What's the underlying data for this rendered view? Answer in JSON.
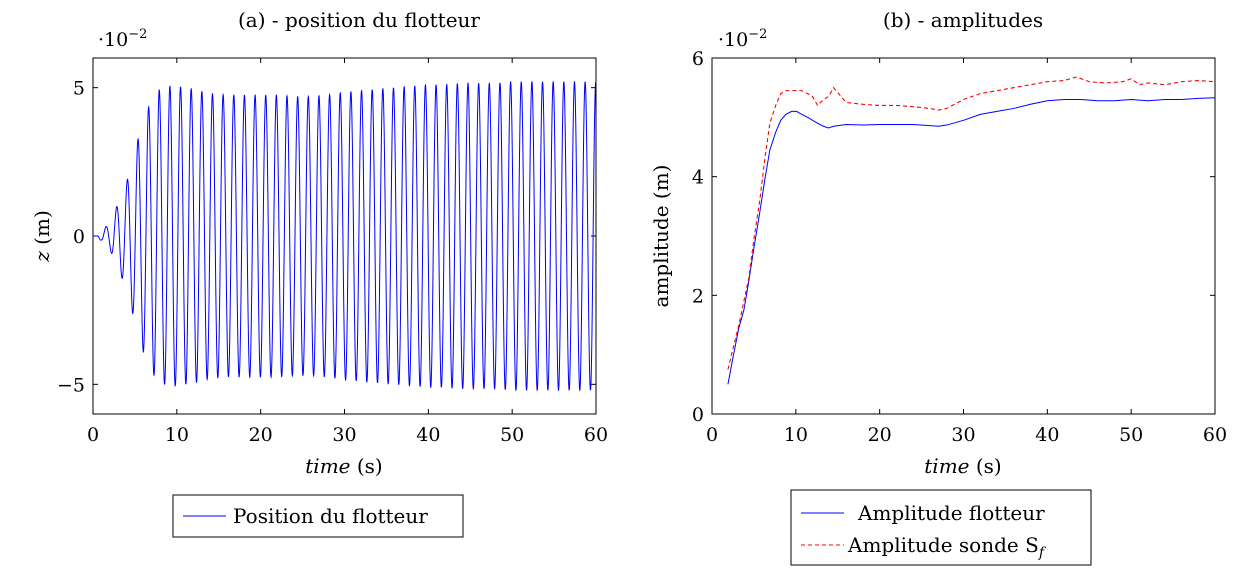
{
  "chart_data": [
    {
      "type": "line",
      "title": "(a) - position du flotteur",
      "xlabel_var": "time",
      "xlabel_unit": "(s)",
      "ylabel_var": "z",
      "ylabel_unit": "(m)",
      "scale_label": "·10",
      "scale_exp": "−2",
      "xlim": [
        0,
        60
      ],
      "ylim": [
        -6,
        6
      ],
      "xticks": [
        0,
        10,
        20,
        30,
        40,
        50,
        60
      ],
      "yticks": [
        -5,
        0,
        5
      ],
      "ytick_labels": [
        "−5",
        "0",
        "5"
      ],
      "grid": false,
      "legend_position": "below",
      "series": [
        {
          "name": "Position du flotteur",
          "color": "#0000ff",
          "style": "solid",
          "period_s": 1.27,
          "start_s": 0.6,
          "x": [
            0,
            1,
            2,
            3,
            4,
            5,
            6,
            7,
            8,
            9,
            10,
            12,
            14,
            16,
            18,
            20,
            22,
            24,
            26,
            28,
            30,
            32,
            34,
            36,
            38,
            40,
            42,
            44,
            46,
            48,
            50,
            52,
            54,
            56,
            58,
            60
          ],
          "peak_amplitude": [
            0,
            0.15,
            0.45,
            1.1,
            1.8,
            2.9,
            3.9,
            4.6,
            4.95,
            5.05,
            5.05,
            4.95,
            4.8,
            4.75,
            4.75,
            4.75,
            4.75,
            4.7,
            4.7,
            4.75,
            4.85,
            4.9,
            4.95,
            5.0,
            5.05,
            5.1,
            5.1,
            5.15,
            5.15,
            5.15,
            5.2,
            5.2,
            5.2,
            5.2,
            5.2,
            5.2
          ]
        }
      ]
    },
    {
      "type": "line",
      "title": "(b) - amplitudes",
      "xlabel_var": "time",
      "xlabel_unit": "(s)",
      "ylabel": "amplitude (m)",
      "scale_label": "·10",
      "scale_exp": "−2",
      "xlim": [
        0,
        60
      ],
      "ylim": [
        0,
        6
      ],
      "xticks": [
        0,
        10,
        20,
        30,
        40,
        50,
        60
      ],
      "yticks": [
        0,
        2,
        4,
        6
      ],
      "grid": false,
      "legend_position": "below",
      "series": [
        {
          "name": "Amplitude flotteur",
          "color": "#0000ff",
          "style": "solid",
          "x": [
            1.9,
            2.5,
            3.2,
            3.8,
            4.4,
            5.0,
            5.7,
            6.3,
            6.9,
            7.6,
            8.2,
            8.8,
            9.5,
            10.1,
            10.7,
            11.4,
            12.0,
            12.6,
            13.3,
            13.9,
            14.5,
            16,
            18,
            20,
            22,
            24,
            26,
            27,
            28,
            30,
            32,
            34,
            36,
            38,
            40,
            42,
            44,
            46,
            48,
            50,
            52,
            54,
            56,
            58,
            60
          ],
          "y": [
            0.5,
            0.95,
            1.45,
            1.75,
            2.25,
            2.8,
            3.4,
            3.95,
            4.45,
            4.75,
            4.95,
            5.05,
            5.1,
            5.1,
            5.05,
            5.0,
            4.95,
            4.9,
            4.85,
            4.82,
            4.85,
            4.88,
            4.87,
            4.88,
            4.88,
            4.88,
            4.86,
            4.85,
            4.87,
            4.95,
            5.05,
            5.1,
            5.15,
            5.22,
            5.28,
            5.3,
            5.3,
            5.28,
            5.28,
            5.3,
            5.28,
            5.3,
            5.3,
            5.32,
            5.33
          ]
        },
        {
          "name": "Amplitude sonde S",
          "name_subscript": "f",
          "color": "#ff0000",
          "style": "dashed",
          "x": [
            1.9,
            2.5,
            3.2,
            3.8,
            4.4,
            5.0,
            5.7,
            6.3,
            6.9,
            7.6,
            8.2,
            8.8,
            9.5,
            10.1,
            10.7,
            11.4,
            12.0,
            12.6,
            13.3,
            13.9,
            14.5,
            15.1,
            16,
            18,
            20,
            22,
            24,
            26,
            27,
            28,
            30,
            32,
            34,
            36,
            38,
            40,
            42,
            43.5,
            45,
            47,
            49,
            50,
            51,
            52,
            54,
            56,
            58,
            60
          ],
          "y": [
            0.75,
            1.1,
            1.5,
            1.9,
            2.3,
            2.95,
            3.6,
            4.3,
            4.9,
            5.2,
            5.4,
            5.45,
            5.45,
            5.45,
            5.45,
            5.4,
            5.35,
            5.2,
            5.3,
            5.35,
            5.5,
            5.4,
            5.25,
            5.22,
            5.2,
            5.2,
            5.18,
            5.15,
            5.12,
            5.15,
            5.3,
            5.4,
            5.45,
            5.5,
            5.55,
            5.6,
            5.62,
            5.68,
            5.6,
            5.58,
            5.6,
            5.65,
            5.55,
            5.58,
            5.55,
            5.6,
            5.62,
            5.6
          ]
        }
      ]
    }
  ]
}
